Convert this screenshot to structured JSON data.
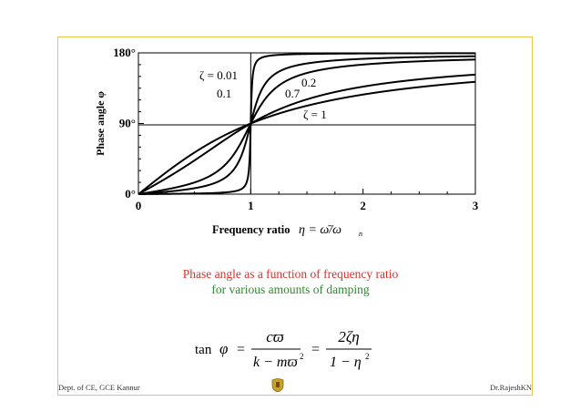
{
  "chart_data": {
    "type": "line",
    "x_ticks": [
      "0",
      "1",
      "2",
      "3"
    ],
    "y_ticks": [
      "0°",
      "90°",
      "180°"
    ],
    "xlim": [
      0,
      3
    ],
    "ylim": [
      0,
      180
    ],
    "grid": false,
    "series": [
      {
        "name": "ζ = 0.01",
        "zeta": 0.01,
        "label_text": "ζ = 0.01"
      },
      {
        "name": "0.1",
        "zeta": 0.1,
        "label_text": "0.1"
      },
      {
        "name": "0.2",
        "zeta": 0.2,
        "label_text": "0.2"
      },
      {
        "name": "0.7",
        "zeta": 0.7,
        "label_text": "0.7"
      },
      {
        "name": "ζ = 1",
        "zeta": 1.0,
        "label_text": "ζ = 1"
      }
    ],
    "ylabel": "Phase angle φ",
    "xlabel_text": "Frequency ratio",
    "xlabel_math": "η = ω̄/ω",
    "xlabel_sub": "n"
  },
  "captions": {
    "line1": "Phase angle as a function of frequency ratio",
    "line2": "for various amounts of damping"
  },
  "formula": {
    "lhs": "tan",
    "phi": "φ",
    "eq": "=",
    "num1": "cϖ",
    "den1": "k − mϖ",
    "den1_exp": "2",
    "num2": "2ζη",
    "den2": "1 − η",
    "den2_exp": "2"
  },
  "footer": {
    "left": "Dept. of CE, GCE Kannur",
    "right": "Dr.RajeshKN"
  }
}
